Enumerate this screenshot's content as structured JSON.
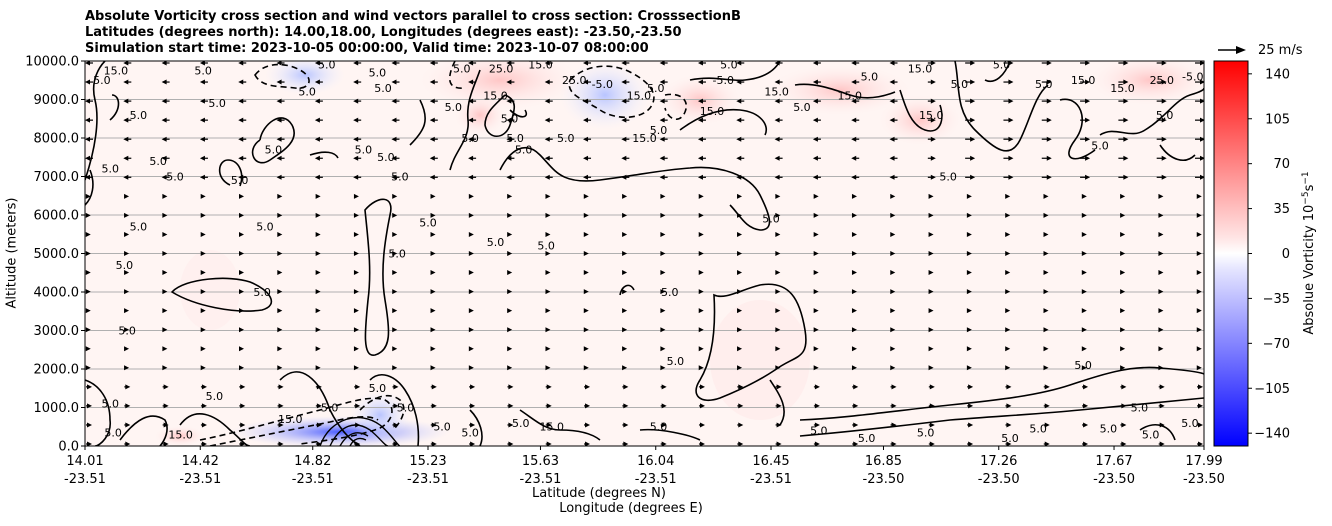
{
  "title": {
    "line1": "Absolute Vorticity cross section and wind vectors parallel to cross section: CrosssectionB",
    "line2": "Latitudes (degrees north): 14.00,18.00, Longitudes (degrees east): -23.50,-23.50",
    "line3": "Simulation start time: 2023-10-05 00:00:00, Valid time: 2023-10-07 08:00:00"
  },
  "quiver_key": {
    "label": "25 m/s"
  },
  "colors": {
    "positive": "#ff0000",
    "negative": "#0000ff",
    "neutral": "#ffffff",
    "contour": "#000000"
  },
  "chart_data": {
    "type": "heatmap",
    "xlabel_line1": "Latitude (degrees N)",
    "xlabel_line2": "Longitude (degrees E)",
    "ylabel": "Altitude (meters)",
    "colorbar_label": "Absolue Vorticity 10$^{-5}$s$^{-1}$",
    "colorbar_label_text": "Absolue Vorticity 10",
    "colorbar_label_exp1": "−5",
    "colorbar_label_mid": "s",
    "colorbar_label_exp2": "−1",
    "xlim": [
      14.01,
      17.99
    ],
    "ylim": [
      0,
      10000
    ],
    "grid": true,
    "x_ticks": [
      {
        "lat": "14.01",
        "lon": "-23.51",
        "value": 14.01
      },
      {
        "lat": "14.42",
        "lon": "-23.51",
        "value": 14.42
      },
      {
        "lat": "14.82",
        "lon": "-23.51",
        "value": 14.82
      },
      {
        "lat": "15.23",
        "lon": "-23.51",
        "value": 15.23
      },
      {
        "lat": "15.63",
        "lon": "-23.51",
        "value": 15.63
      },
      {
        "lat": "16.04",
        "lon": "-23.51",
        "value": 16.04
      },
      {
        "lat": "16.45",
        "lon": "-23.51",
        "value": 16.45
      },
      {
        "lat": "16.85",
        "lon": "-23.50",
        "value": 16.85
      },
      {
        "lat": "17.26",
        "lon": "-23.50",
        "value": 17.26
      },
      {
        "lat": "17.67",
        "lon": "-23.50",
        "value": 17.67
      },
      {
        "lat": "17.99",
        "lon": "-23.50",
        "value": 17.99
      }
    ],
    "y_ticks": [
      "0.0",
      "1000.0",
      "2000.0",
      "3000.0",
      "4000.0",
      "5000.0",
      "6000.0",
      "7000.0",
      "8000.0",
      "9000.0",
      "10000.0"
    ],
    "y_tick_values": [
      0,
      1000,
      2000,
      3000,
      4000,
      5000,
      6000,
      7000,
      8000,
      9000,
      10000
    ],
    "colorbar_range": [
      -150,
      150
    ],
    "colorbar_ticks": [
      "140",
      "105",
      "70",
      "35",
      "0",
      "−35",
      "−70",
      "−105",
      "−140"
    ],
    "colorbar_tick_values": [
      140,
      105,
      70,
      35,
      0,
      -35,
      -70,
      -105,
      -140
    ],
    "contour_labels": [
      {
        "text": "5.0",
        "lat": 14.07,
        "alt": 9400
      },
      {
        "text": "15.0",
        "lat": 14.12,
        "alt": 9650
      },
      {
        "text": "5.0",
        "lat": 14.43,
        "alt": 9650
      },
      {
        "text": "5.0",
        "lat": 14.48,
        "alt": 8800
      },
      {
        "text": "5.0",
        "lat": 14.2,
        "alt": 8500
      },
      {
        "text": "5.0",
        "lat": 14.1,
        "alt": 7100
      },
      {
        "text": "5.0",
        "lat": 14.33,
        "alt": 6900
      },
      {
        "text": "5.0",
        "lat": 14.27,
        "alt": 7300
      },
      {
        "text": "5.0",
        "lat": 14.56,
        "alt": 6800
      },
      {
        "text": "5.0",
        "lat": 14.68,
        "alt": 7600
      },
      {
        "text": "5.0",
        "lat": 14.65,
        "alt": 5600
      },
      {
        "text": "5.0",
        "lat": 14.2,
        "alt": 5600
      },
      {
        "text": "5.0",
        "lat": 14.15,
        "alt": 4600
      },
      {
        "text": "5.0",
        "lat": 14.64,
        "alt": 3900
      },
      {
        "text": "5.0",
        "lat": 14.16,
        "alt": 2900
      },
      {
        "text": "5.0",
        "lat": 14.87,
        "alt": 9800
      },
      {
        "text": "5.0",
        "lat": 14.8,
        "alt": 9100
      },
      {
        "text": "5.0",
        "lat": 15.05,
        "alt": 9600
      },
      {
        "text": "5.0",
        "lat": 15.0,
        "alt": 7600
      },
      {
        "text": "5.0",
        "lat": 15.08,
        "alt": 7400
      },
      {
        "text": "5.0",
        "lat": 15.07,
        "alt": 9200
      },
      {
        "text": "5.0",
        "lat": 15.13,
        "alt": 6900
      },
      {
        "text": "5.0",
        "lat": 15.12,
        "alt": 4900
      },
      {
        "text": "5.0",
        "lat": 15.23,
        "alt": 5700
      },
      {
        "text": "5.0",
        "lat": 15.35,
        "alt": 9700
      },
      {
        "text": "5.0",
        "lat": 15.38,
        "alt": 7900
      },
      {
        "text": "5.0",
        "lat": 15.32,
        "alt": 8700
      },
      {
        "text": "5.0",
        "lat": 15.54,
        "alt": 7900
      },
      {
        "text": "5.0",
        "lat": 15.47,
        "alt": 5200
      },
      {
        "text": "5.0",
        "lat": 15.65,
        "alt": 5100
      },
      {
        "text": "15.0",
        "lat": 15.47,
        "alt": 9000
      },
      {
        "text": "5.0",
        "lat": 15.52,
        "alt": 8400
      },
      {
        "text": "25.0",
        "lat": 15.49,
        "alt": 9700
      },
      {
        "text": "15.0",
        "lat": 15.63,
        "alt": 9800
      },
      {
        "text": "5.0",
        "lat": 15.57,
        "alt": 7600
      },
      {
        "text": "5.0",
        "lat": 15.72,
        "alt": 7900
      },
      {
        "text": "25.0",
        "lat": 15.75,
        "alt": 9400
      },
      {
        "text": "-5.0",
        "lat": 15.85,
        "alt": 9300
      },
      {
        "text": "15.0",
        "lat": 15.98,
        "alt": 9000
      },
      {
        "text": "5.0",
        "lat": 16.04,
        "alt": 9200
      },
      {
        "text": "15.0",
        "lat": 16.0,
        "alt": 7900
      },
      {
        "text": "5.0",
        "lat": 16.05,
        "alt": 8100
      },
      {
        "text": "15.0",
        "lat": 16.24,
        "alt": 8600
      },
      {
        "text": "-5.0",
        "lat": 16.28,
        "alt": 9400
      },
      {
        "text": "5.0",
        "lat": 16.3,
        "alt": 9800
      },
      {
        "text": "15.0",
        "lat": 16.47,
        "alt": 9100
      },
      {
        "text": "5.0",
        "lat": 16.56,
        "alt": 8700
      },
      {
        "text": "5.0",
        "lat": 16.45,
        "alt": 5800
      },
      {
        "text": "5.0",
        "lat": 16.09,
        "alt": 3900
      },
      {
        "text": "5.0",
        "lat": 16.11,
        "alt": 2100
      },
      {
        "text": "15.0",
        "lat": 16.73,
        "alt": 9000
      },
      {
        "text": "5.0",
        "lat": 16.8,
        "alt": 9500
      },
      {
        "text": "15.0",
        "lat": 16.98,
        "alt": 9700
      },
      {
        "text": "15.0",
        "lat": 17.02,
        "alt": 8500
      },
      {
        "text": "5.0",
        "lat": 17.12,
        "alt": 9300
      },
      {
        "text": "5.0",
        "lat": 17.08,
        "alt": 6900
      },
      {
        "text": "5.0",
        "lat": 17.27,
        "alt": 9800
      },
      {
        "text": "5.0",
        "lat": 17.42,
        "alt": 9300
      },
      {
        "text": "15.0",
        "lat": 17.56,
        "alt": 9400
      },
      {
        "text": "5.0",
        "lat": 17.62,
        "alt": 7700
      },
      {
        "text": "15.0",
        "lat": 17.7,
        "alt": 9200
      },
      {
        "text": "25.0",
        "lat": 17.84,
        "alt": 9400
      },
      {
        "text": "-5.0",
        "lat": 17.95,
        "alt": 9500
      },
      {
        "text": "5.0",
        "lat": 17.85,
        "alt": 8500
      },
      {
        "text": "5.0",
        "lat": 17.56,
        "alt": 2000
      },
      {
        "text": "5.0",
        "lat": 17.76,
        "alt": 900
      },
      {
        "text": "5.0",
        "lat": 17.94,
        "alt": 500
      },
      {
        "text": "5.0",
        "lat": 17.8,
        "alt": 200
      },
      {
        "text": "5.0",
        "lat": 17.65,
        "alt": 350
      },
      {
        "text": "5.0",
        "lat": 17.4,
        "alt": 350
      },
      {
        "text": "5.0",
        "lat": 17.3,
        "alt": 100
      },
      {
        "text": "5.0",
        "lat": 17.0,
        "alt": 250
      },
      {
        "text": "5.0",
        "lat": 16.79,
        "alt": 100
      },
      {
        "text": "5.0",
        "lat": 16.62,
        "alt": 300
      },
      {
        "text": "5.0",
        "lat": 16.05,
        "alt": 400
      },
      {
        "text": "15.0",
        "lat": 15.67,
        "alt": 400
      },
      {
        "text": "5.0",
        "lat": 15.56,
        "alt": 500
      },
      {
        "text": "5.0",
        "lat": 15.38,
        "alt": 250
      },
      {
        "text": "5.0",
        "lat": 15.28,
        "alt": 400
      },
      {
        "text": "5.0",
        "lat": 15.15,
        "alt": 900
      },
      {
        "text": "5.0",
        "lat": 15.05,
        "alt": 1400
      },
      {
        "text": "5.0",
        "lat": 14.88,
        "alt": 900
      },
      {
        "text": "15.0",
        "lat": 14.74,
        "alt": 600
      },
      {
        "text": "5.0",
        "lat": 14.47,
        "alt": 1200
      },
      {
        "text": "5.0",
        "lat": 14.1,
        "alt": 1000
      },
      {
        "text": "5.0",
        "lat": 14.11,
        "alt": 250
      },
      {
        "text": "15.0",
        "lat": 14.35,
        "alt": 200
      }
    ]
  }
}
